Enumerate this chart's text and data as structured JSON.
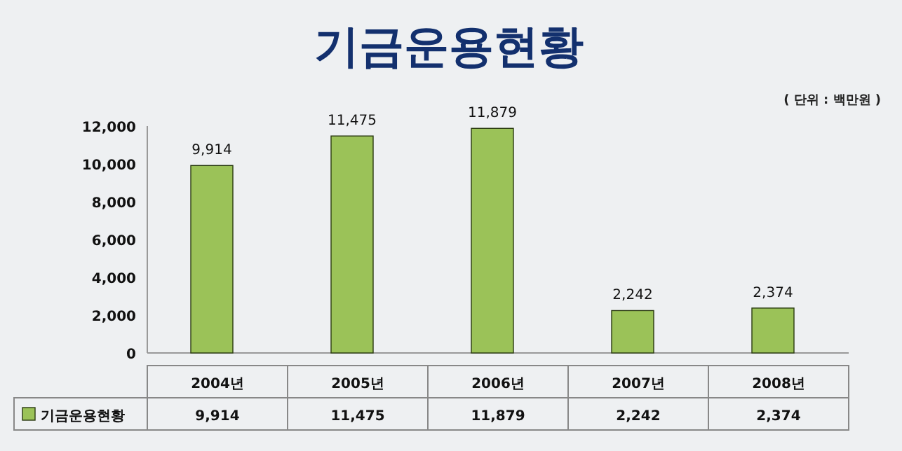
{
  "chart_data": {
    "type": "bar",
    "title": "기금운용현황",
    "annotations": [
      "( 단위 : 백만원 )"
    ],
    "categories": [
      "2004년",
      "2005년",
      "2006년",
      "2007년",
      "2008년"
    ],
    "series": [
      {
        "name": "기금운용현황",
        "color": "#9bc258",
        "values": [
          9914,
          11475,
          11879,
          2242,
          2374
        ],
        "value_labels": [
          "9,914",
          "11,475",
          "11,879",
          "2,242",
          "2,374"
        ]
      }
    ],
    "ylim": [
      0,
      12000
    ],
    "yticks": [
      0,
      {
        "value": 2000,
        "label": "2,000"
      },
      {
        "value": 4000,
        "label": "4,000"
      },
      {
        "value": 6000,
        "label": "6,000"
      },
      {
        "value": 8000,
        "label": "8,000"
      },
      {
        "value": 10000,
        "label": "10,000"
      },
      {
        "value": 12000,
        "label": "12,000"
      }
    ],
    "legend": "bottom",
    "grid": false
  }
}
